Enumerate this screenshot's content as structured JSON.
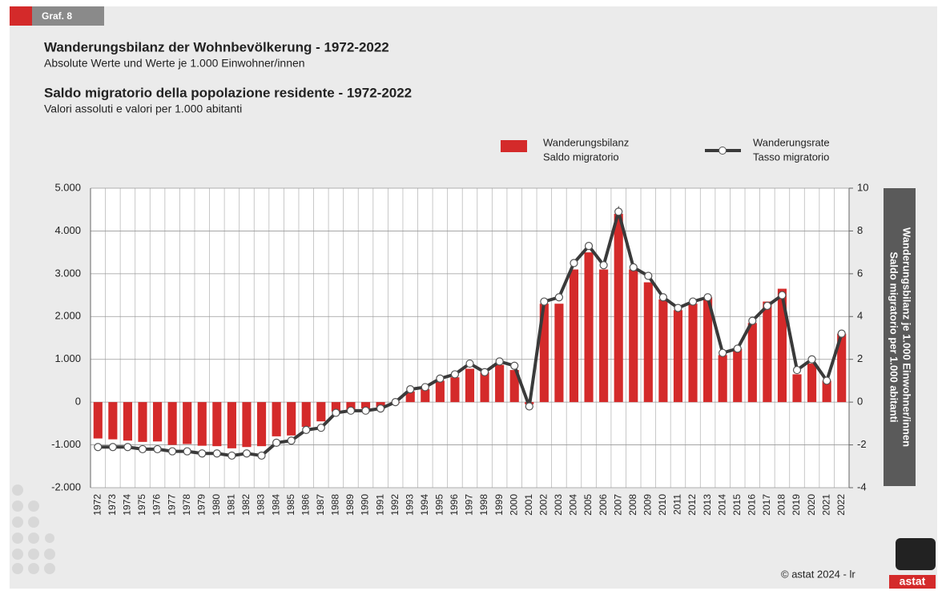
{
  "chart_data": {
    "type": "bar",
    "tag": "Graf. 8",
    "title": "Wanderungsbilanz der Wohnbevölkerung - 1972-2022",
    "subtitle": "Absolute Werte und Werte je 1.000 Einwohner/innen",
    "title2": "Saldo migratorio della popolazione residente - 1972-2022",
    "subtitle2": "Valori assoluti e valori per 1.000 abitanti",
    "y2label": [
      "Wanderungsbilanz je 1.000 Einwohner/innen",
      "Saldo migratorio per 1.000 abitanti"
    ],
    "source": "© astat 2024 - lr",
    "logo": "astat",
    "grid": true,
    "legend": "top-right",
    "categories": [
      "1972",
      "1973",
      "1974",
      "1975",
      "1976",
      "1977",
      "1978",
      "1979",
      "1980",
      "1981",
      "1982",
      "1983",
      "1984",
      "1985",
      "1986",
      "1987",
      "1988",
      "1989",
      "1990",
      "1991",
      "1992",
      "1993",
      "1994",
      "1995",
      "1996",
      "1997",
      "1998",
      "1999",
      "2000",
      "2001",
      "2002",
      "2003",
      "2004",
      "2005",
      "2006",
      "2007",
      "2008",
      "2009",
      "2010",
      "2011",
      "2012",
      "2013",
      "2014",
      "2015",
      "2016",
      "2017",
      "2018",
      "2019",
      "2020",
      "2021",
      "2022"
    ],
    "series": [
      {
        "name": [
          "Wanderungsbilanz",
          "Saldo migratorio"
        ],
        "type": "bar",
        "axis": "y",
        "color": "#d42a2a",
        "values": [
          -850,
          -870,
          -900,
          -930,
          -920,
          -1000,
          -980,
          -1020,
          -1030,
          -1080,
          -1050,
          -1030,
          -800,
          -780,
          -580,
          -450,
          -220,
          -180,
          -150,
          -120,
          -20,
          250,
          300,
          500,
          580,
          780,
          700,
          870,
          750,
          -50,
          2300,
          2300,
          3100,
          3500,
          3100,
          4400,
          3100,
          2800,
          2400,
          2150,
          2300,
          2450,
          1100,
          1250,
          1850,
          2350,
          2650,
          650,
          900,
          500,
          1600
        ]
      },
      {
        "name": [
          "Wanderungsrate",
          "Tasso migratorio"
        ],
        "type": "line",
        "axis": "y2",
        "color": "#3a3a3a",
        "values": [
          -2.1,
          -2.1,
          -2.1,
          -2.2,
          -2.2,
          -2.3,
          -2.3,
          -2.4,
          -2.4,
          -2.5,
          -2.4,
          -2.5,
          -1.9,
          -1.8,
          -1.3,
          -1.2,
          -0.5,
          -0.4,
          -0.4,
          -0.3,
          0,
          0.6,
          0.7,
          1.1,
          1.3,
          1.8,
          1.4,
          1.9,
          1.7,
          -0.2,
          4.7,
          4.9,
          6.5,
          7.3,
          6.4,
          8.9,
          6.3,
          5.9,
          4.9,
          4.4,
          4.7,
          4.9,
          2.3,
          2.5,
          3.8,
          4.5,
          5.0,
          1.5,
          2.0,
          1.0,
          3.2
        ]
      }
    ],
    "ylim": [
      -2000,
      5000
    ],
    "yticks": [
      {
        "value": -2000,
        "label": "-2.000"
      },
      {
        "value": -1000,
        "label": "-1.000"
      },
      0,
      {
        "value": 1000,
        "label": "1.000"
      },
      {
        "value": 2000,
        "label": "2.000"
      },
      {
        "value": 3000,
        "label": "3.000"
      },
      {
        "value": 4000,
        "label": "4.000"
      },
      {
        "value": 5000,
        "label": "5.000"
      }
    ],
    "y2lim": [
      -4,
      10
    ],
    "y2ticks": [
      -4,
      -2,
      0,
      2,
      4,
      6,
      8,
      10
    ]
  }
}
